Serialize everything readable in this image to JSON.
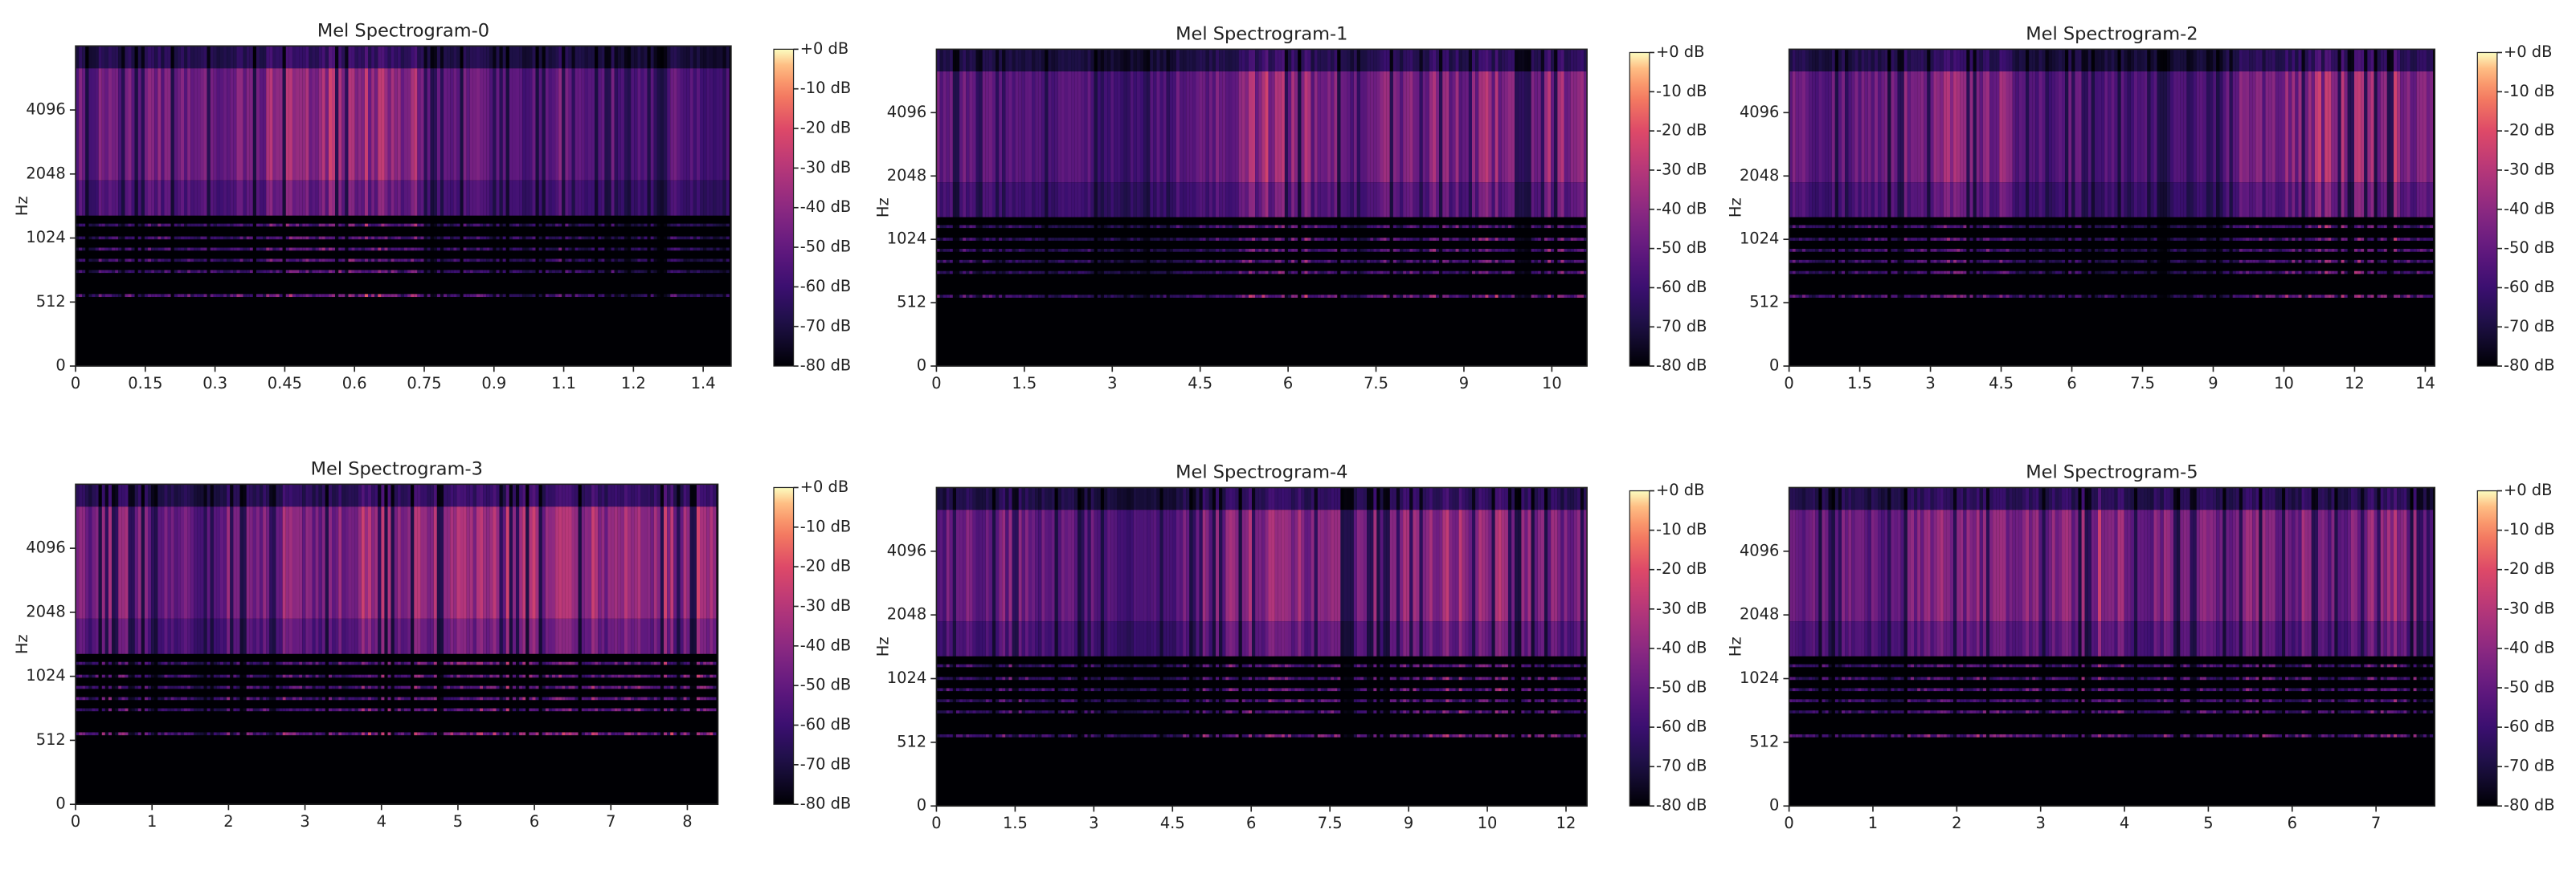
{
  "chart_data": [
    {
      "type": "spectrogram",
      "title": "Mel Spectrogram-0",
      "ylabel": "Hz",
      "colormap": "magma",
      "xlim": [
        0,
        1.41
      ],
      "xticks": [
        0,
        0.15,
        0.3,
        0.45,
        0.6,
        0.75,
        0.9,
        {
          "value": 1.05,
          "label": "1.1"
        },
        1.2,
        {
          "value": 1.35,
          "label": "1.4"
        }
      ],
      "ylim": [
        0,
        8192
      ],
      "yticks": [
        0,
        512,
        1024,
        2048,
        4096
      ],
      "yscale": "symlog",
      "linthresh": 1024,
      "linscale": 2,
      "clim": [
        -80,
        0
      ],
      "cticks": [
        {
          "value": 0,
          "label": "+0 dB"
        },
        {
          "value": -10,
          "label": "-10 dB"
        },
        {
          "value": -20,
          "label": "-20 dB"
        },
        {
          "value": -30,
          "label": "-30 dB"
        },
        {
          "value": -40,
          "label": "-40 dB"
        },
        {
          "value": -50,
          "label": "-50 dB"
        },
        {
          "value": -60,
          "label": "-60 dB"
        },
        {
          "value": -70,
          "label": "-70 dB"
        },
        {
          "value": -80,
          "label": "-80 dB"
        }
      ]
    },
    {
      "type": "spectrogram",
      "title": "Mel Spectrogram-1",
      "ylabel": "Hz",
      "colormap": "magma",
      "xlim": [
        0,
        11.1
      ],
      "xticks": [
        0,
        1.5,
        3,
        4.5,
        6,
        7.5,
        9,
        {
          "value": 10.5,
          "label": "10"
        }
      ],
      "ylim": [
        0,
        8192
      ],
      "yticks": [
        0,
        512,
        1024,
        2048,
        4096
      ],
      "yscale": "symlog",
      "linthresh": 1024,
      "linscale": 2,
      "clim": [
        -80,
        0
      ],
      "cticks": [
        {
          "value": 0,
          "label": "+0 dB"
        },
        {
          "value": -10,
          "label": "-10 dB"
        },
        {
          "value": -20,
          "label": "-20 dB"
        },
        {
          "value": -30,
          "label": "-30 dB"
        },
        {
          "value": -40,
          "label": "-40 dB"
        },
        {
          "value": -50,
          "label": "-50 dB"
        },
        {
          "value": -60,
          "label": "-60 dB"
        },
        {
          "value": -70,
          "label": "-70 dB"
        },
        {
          "value": -80,
          "label": "-80 dB"
        }
      ]
    },
    {
      "type": "spectrogram",
      "title": "Mel Spectrogram-2",
      "ylabel": "Hz",
      "colormap": "magma",
      "xlim": [
        0,
        13.7
      ],
      "xticks": [
        0,
        1.5,
        3,
        4.5,
        6,
        7.5,
        9,
        {
          "value": 10.5,
          "label": "10"
        },
        12,
        {
          "value": 13.5,
          "label": "14"
        }
      ],
      "ylim": [
        0,
        8192
      ],
      "yticks": [
        0,
        512,
        1024,
        2048,
        4096
      ],
      "yscale": "symlog",
      "linthresh": 1024,
      "linscale": 2,
      "clim": [
        -80,
        0
      ],
      "cticks": [
        {
          "value": 0,
          "label": "+0 dB"
        },
        {
          "value": -10,
          "label": "-10 dB"
        },
        {
          "value": -20,
          "label": "-20 dB"
        },
        {
          "value": -30,
          "label": "-30 dB"
        },
        {
          "value": -40,
          "label": "-40 dB"
        },
        {
          "value": -50,
          "label": "-50 dB"
        },
        {
          "value": -60,
          "label": "-60 dB"
        },
        {
          "value": -70,
          "label": "-70 dB"
        },
        {
          "value": -80,
          "label": "-80 dB"
        }
      ]
    },
    {
      "type": "spectrogram",
      "title": "Mel Spectrogram-3",
      "ylabel": "Hz",
      "colormap": "magma",
      "xlim": [
        0,
        8.4
      ],
      "xticks": [
        0,
        1,
        2,
        3,
        4,
        5,
        6,
        7,
        8
      ],
      "ylim": [
        0,
        8192
      ],
      "yticks": [
        0,
        512,
        1024,
        2048,
        4096
      ],
      "yscale": "symlog",
      "linthresh": 1024,
      "linscale": 2,
      "clim": [
        -80,
        0
      ],
      "cticks": [
        {
          "value": 0,
          "label": "+0 dB"
        },
        {
          "value": -10,
          "label": "-10 dB"
        },
        {
          "value": -20,
          "label": "-20 dB"
        },
        {
          "value": -30,
          "label": "-30 dB"
        },
        {
          "value": -40,
          "label": "-40 dB"
        },
        {
          "value": -50,
          "label": "-50 dB"
        },
        {
          "value": -60,
          "label": "-60 dB"
        },
        {
          "value": -70,
          "label": "-70 dB"
        },
        {
          "value": -80,
          "label": "-80 dB"
        }
      ]
    },
    {
      "type": "spectrogram",
      "title": "Mel Spectrogram-4",
      "ylabel": "Hz",
      "colormap": "magma",
      "xlim": [
        0,
        12.4
      ],
      "xticks": [
        0,
        1.5,
        3,
        4.5,
        6,
        7.5,
        9,
        {
          "value": 10.5,
          "label": "10"
        },
        12
      ],
      "ylim": [
        0,
        8192
      ],
      "yticks": [
        0,
        512,
        1024,
        2048,
        4096
      ],
      "yscale": "symlog",
      "linthresh": 1024,
      "linscale": 2,
      "clim": [
        -80,
        0
      ],
      "cticks": [
        {
          "value": 0,
          "label": "+0 dB"
        },
        {
          "value": -10,
          "label": "-10 dB"
        },
        {
          "value": -20,
          "label": "-20 dB"
        },
        {
          "value": -30,
          "label": "-30 dB"
        },
        {
          "value": -40,
          "label": "-40 dB"
        },
        {
          "value": -50,
          "label": "-50 dB"
        },
        {
          "value": -60,
          "label": "-60 dB"
        },
        {
          "value": -70,
          "label": "-70 dB"
        },
        {
          "value": -80,
          "label": "-80 dB"
        }
      ]
    },
    {
      "type": "spectrogram",
      "title": "Mel Spectrogram-5",
      "ylabel": "Hz",
      "colormap": "magma",
      "xlim": [
        0,
        7.7
      ],
      "xticks": [
        0,
        1,
        2,
        3,
        4,
        5,
        6,
        7
      ],
      "ylim": [
        0,
        8192
      ],
      "yticks": [
        0,
        512,
        1024,
        2048,
        4096
      ],
      "yscale": "symlog",
      "linthresh": 1024,
      "linscale": 2,
      "clim": [
        -80,
        0
      ],
      "cticks": [
        {
          "value": 0,
          "label": "+0 dB"
        },
        {
          "value": -10,
          "label": "-10 dB"
        },
        {
          "value": -20,
          "label": "-20 dB"
        },
        {
          "value": -30,
          "label": "-30 dB"
        },
        {
          "value": -40,
          "label": "-40 dB"
        },
        {
          "value": -50,
          "label": "-50 dB"
        },
        {
          "value": -60,
          "label": "-60 dB"
        },
        {
          "value": -70,
          "label": "-70 dB"
        },
        {
          "value": -80,
          "label": "-80 dB"
        }
      ]
    }
  ]
}
